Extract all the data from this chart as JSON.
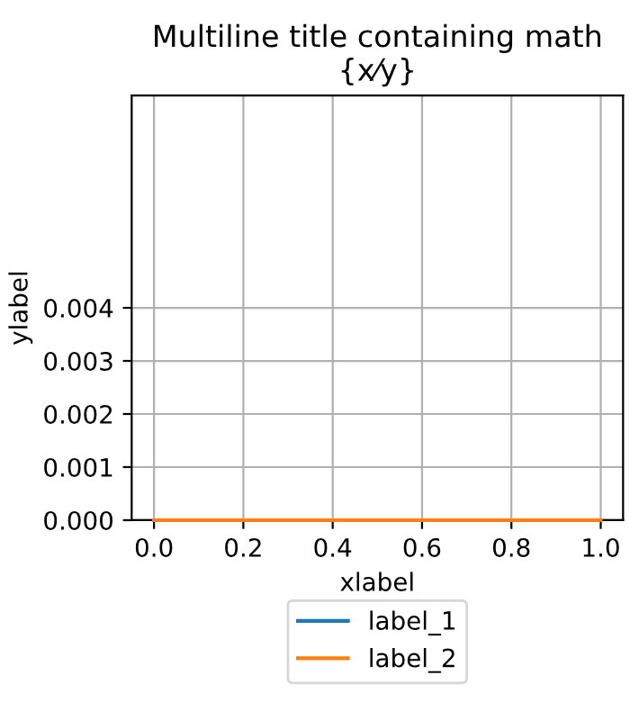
{
  "chart_data": {
    "type": "line",
    "title": "Multiline title containing math\n{x⁄y}",
    "xlabel": "xlabel",
    "ylabel": "ylabel",
    "x": [
      0,
      1
    ],
    "series": [
      {
        "name": "label_1",
        "color": "#1f77b4",
        "values": [
          null,
          null
        ]
      },
      {
        "name": "label_2",
        "color": "#ff7f0e",
        "values": [
          0,
          0
        ]
      }
    ],
    "xlim": [
      -0.05,
      1.05
    ],
    "ylim": [
      0,
      0.008
    ],
    "xticks": [
      {
        "value": 0,
        "label": "0.0"
      },
      {
        "value": 0.2,
        "label": "0.2"
      },
      {
        "value": 0.4,
        "label": "0.4"
      },
      {
        "value": 0.6,
        "label": "0.6"
      },
      {
        "value": 0.8,
        "label": "0.8"
      },
      {
        "value": 1,
        "label": "1.0"
      }
    ],
    "yticks": [
      {
        "value": 0,
        "label": "0.000"
      },
      {
        "value": 0.001,
        "label": "0.001"
      },
      {
        "value": 0.002,
        "label": "0.002"
      },
      {
        "value": 0.003,
        "label": "0.003"
      },
      {
        "value": 0.004,
        "label": "0.004"
      }
    ],
    "grid": true,
    "legend": "bottom",
    "marker": "none",
    "line_style": "solid"
  }
}
